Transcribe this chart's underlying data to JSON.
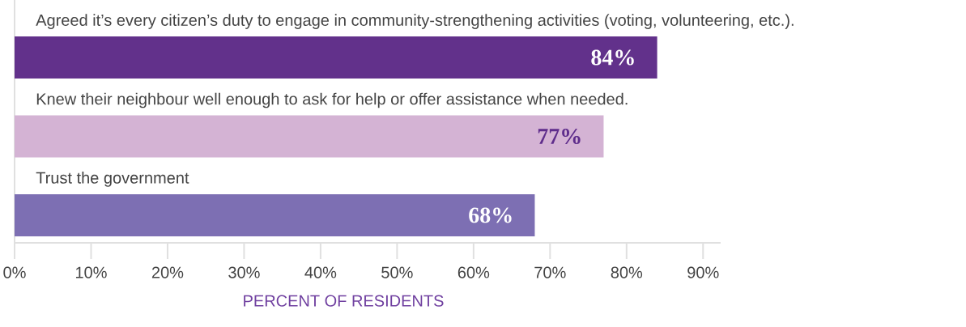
{
  "chart_data": {
    "type": "bar",
    "orientation": "horizontal",
    "categories": [
      "Agreed it’s every citizen’s duty to engage in community-strengthening activities (voting, volunteering, etc.).",
      "Knew their neighbour well enough to ask for help or offer assistance when needed.",
      "Trust the government"
    ],
    "values": [
      84,
      77,
      68
    ],
    "colors": [
      "#62318b",
      "#d4b3d4",
      "#7d6fb3"
    ],
    "value_labels": [
      "84%",
      "77%",
      "68%"
    ],
    "xlabel": "PERCENT OF RESIDENTS",
    "xlim": [
      0,
      92.3
    ],
    "xticks": [
      {
        "value": 0,
        "label": "0%"
      },
      {
        "value": 10,
        "label": "10%"
      },
      {
        "value": 20,
        "label": "20%"
      },
      {
        "value": 30,
        "label": "30%"
      },
      {
        "value": 40,
        "label": "40%"
      },
      {
        "value": 50,
        "label": "50%"
      },
      {
        "value": 60,
        "label": "60%"
      },
      {
        "value": 70,
        "label": "70%"
      },
      {
        "value": 80,
        "label": "80%"
      },
      {
        "value": 90,
        "label": "90%"
      }
    ]
  }
}
